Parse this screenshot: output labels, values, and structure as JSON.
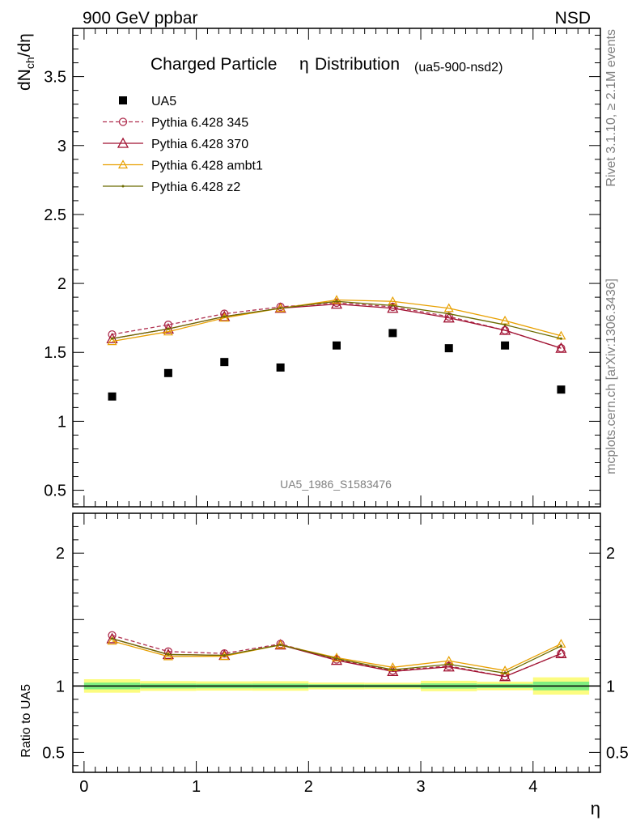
{
  "header": {
    "left": "900 GeV ppbar",
    "right": "NSD"
  },
  "side": {
    "rivet": "Rivet 3.1.10, ≥ 2.1M events",
    "mcplots": "mcplots.cern.ch [arXiv:1306.3436]"
  },
  "chart_data": {
    "type": "line",
    "title": "Charged Particle",
    "title_symbol": "η",
    "title_rest": "Distribution",
    "title_tag": "(ua5-900-nsd2)",
    "watermark": "UA5_1986_S1583476",
    "xlabel": "η",
    "ylabel_main": "dN",
    "ylabel_sub": "ch",
    "ylabel_rest": "/dη",
    "ylabel_ratio": "Ratio to UA5",
    "xlim": [
      -0.1,
      4.6
    ],
    "ylim": [
      0.38,
      3.85
    ],
    "ratio_ylim": [
      0.35,
      2.3
    ],
    "x_ticks": [
      "0",
      "1",
      "2",
      "3",
      "4"
    ],
    "y_ticks": [
      "0.5",
      "1",
      "1.5",
      "2",
      "2.5",
      "3",
      "3.5"
    ],
    "ratio_ticks": [
      "0.5",
      "1",
      "2"
    ],
    "x": [
      0.25,
      0.75,
      1.25,
      1.75,
      2.25,
      2.75,
      3.25,
      3.75,
      4.25
    ],
    "bins": [
      [
        0,
        0.5
      ],
      [
        0.5,
        1
      ],
      [
        1,
        1.5
      ],
      [
        1.5,
        2
      ],
      [
        2,
        2.5
      ],
      [
        2.5,
        3
      ],
      [
        3,
        3.5
      ],
      [
        3.5,
        4
      ],
      [
        4,
        4.5
      ]
    ],
    "data": {
      "name": "UA5",
      "values": [
        1.18,
        1.35,
        1.43,
        1.39,
        1.55,
        1.64,
        1.53,
        1.55,
        1.23
      ],
      "band_yellow": [
        0.06,
        0.05,
        0.05,
        0.05,
        0.04,
        0.04,
        0.06,
        0.05,
        0.08
      ],
      "band_green": [
        0.03,
        0.025,
        0.025,
        0.025,
        0.02,
        0.02,
        0.03,
        0.025,
        0.04
      ]
    },
    "series": [
      {
        "name": "Pythia 6.428 345",
        "color": "#b03050",
        "marker": "circle",
        "dashed": true,
        "values": [
          1.63,
          1.7,
          1.78,
          1.83,
          1.86,
          1.83,
          1.76,
          1.66,
          1.53
        ]
      },
      {
        "name": "Pythia 6.428 370",
        "color": "#a01030",
        "marker": "triangle",
        "dashed": false,
        "values": [
          1.6,
          1.67,
          1.76,
          1.82,
          1.85,
          1.82,
          1.75,
          1.66,
          1.53
        ]
      },
      {
        "name": "Pythia 6.428 ambt1",
        "color": "#e8a000",
        "marker": "triangle-small",
        "dashed": false,
        "values": [
          1.58,
          1.65,
          1.75,
          1.82,
          1.88,
          1.87,
          1.82,
          1.73,
          1.62
        ]
      },
      {
        "name": "Pythia 6.428 z2",
        "color": "#6b6b00",
        "marker": "dot",
        "dashed": false,
        "values": [
          1.6,
          1.67,
          1.76,
          1.82,
          1.87,
          1.84,
          1.78,
          1.7,
          1.6
        ]
      }
    ]
  }
}
